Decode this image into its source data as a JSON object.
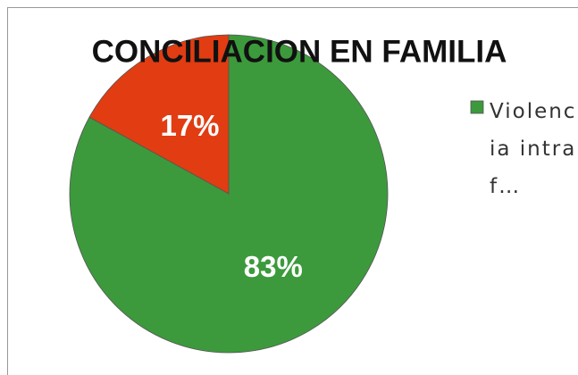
{
  "chart_data": {
    "type": "pie",
    "title": "CONCILIACION EN FAMILIA",
    "categories": [
      "Violencia intraf…",
      null
    ],
    "values": [
      83,
      17
    ],
    "value_labels": [
      "83%",
      "17%"
    ],
    "colors": [
      "#3c9a3c",
      "#e13c12"
    ],
    "legend": "right"
  }
}
